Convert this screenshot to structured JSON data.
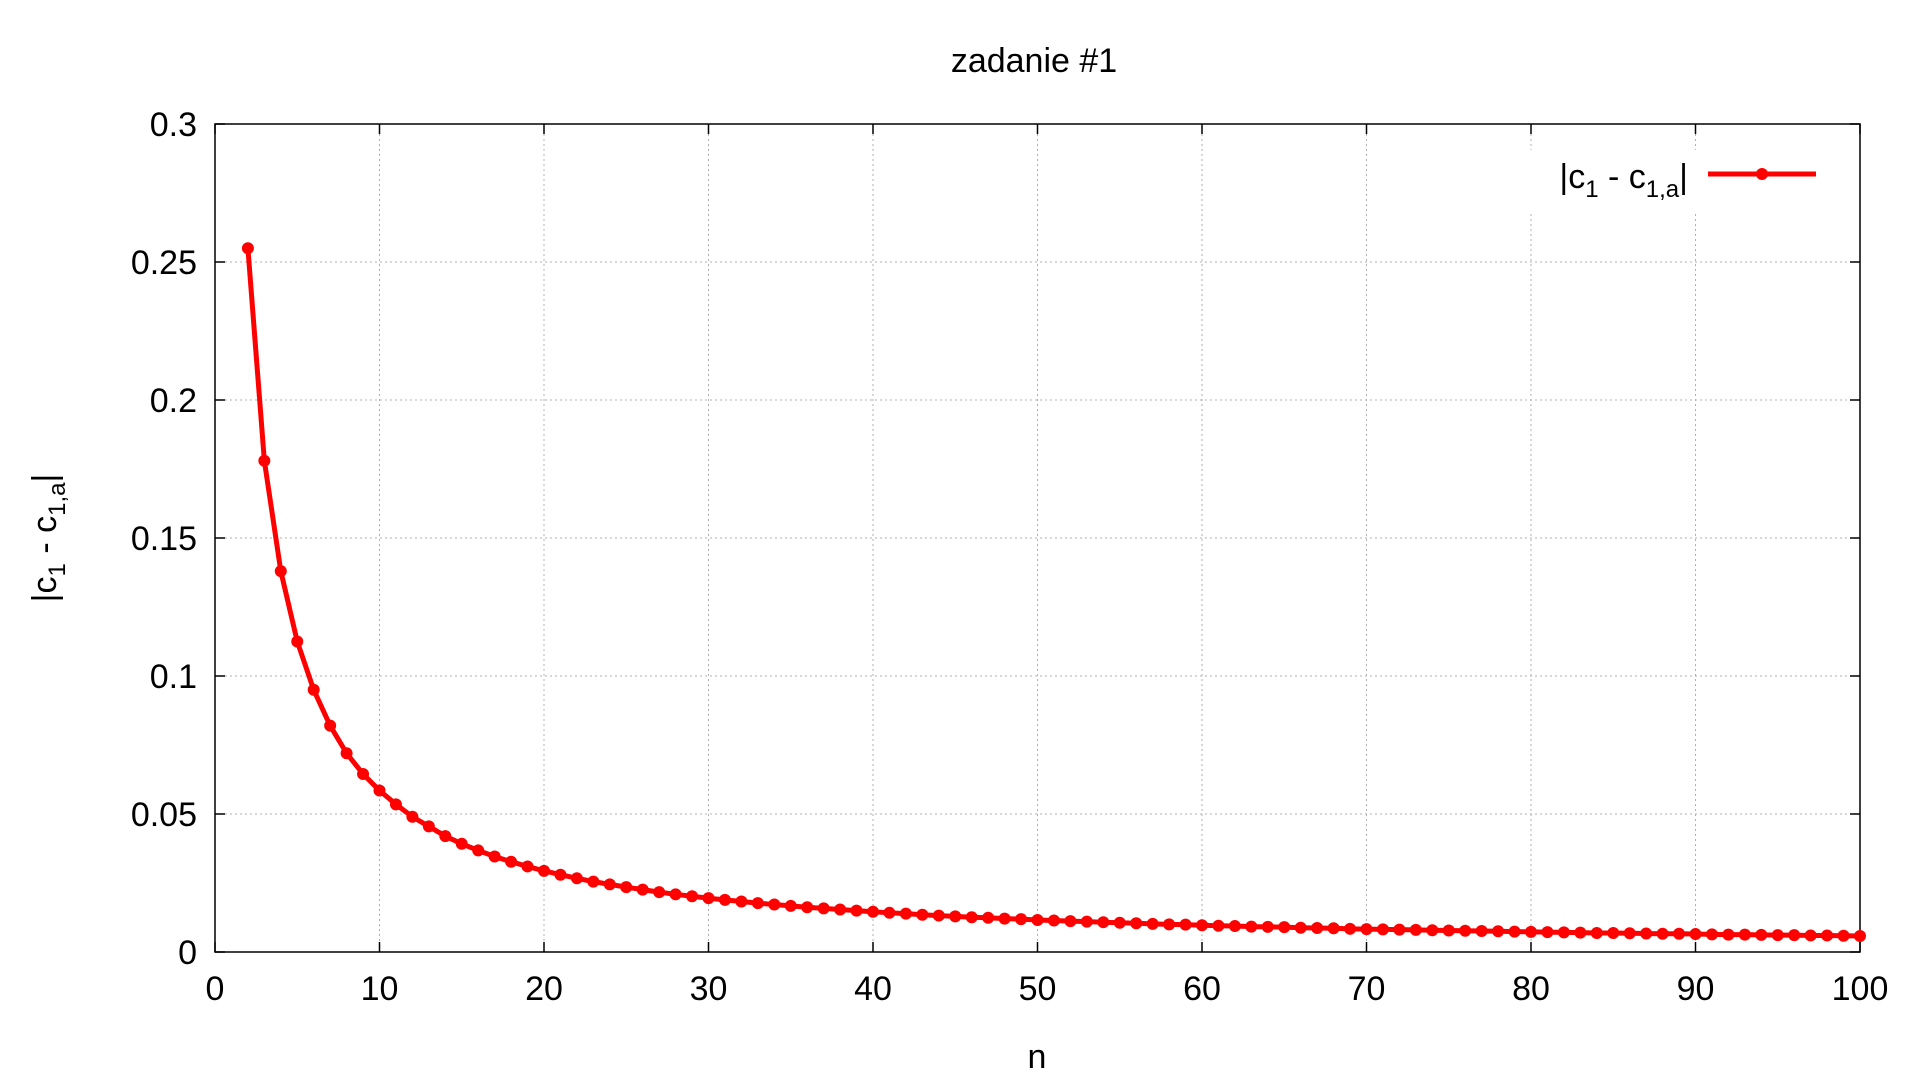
{
  "chart_data": {
    "type": "line",
    "title": "zadanie #1",
    "xlabel": "n",
    "ylabel": {
      "prefix": "|c",
      "sub1": "1",
      "middle": " - c",
      "sub2": "1,a",
      "suffix": "|"
    },
    "xlim": [
      0,
      100
    ],
    "ylim": [
      0,
      0.3
    ],
    "xticks": [
      "0",
      "10",
      "20",
      "30",
      "40",
      "50",
      "60",
      "70",
      "80",
      "90",
      "100"
    ],
    "yticks": [
      "0",
      "0.05",
      "0.1",
      "0.15",
      "0.2",
      "0.25",
      "0.3"
    ],
    "grid": true,
    "legend_position": "top-right",
    "series": [
      {
        "name": {
          "prefix": "|c",
          "sub1": "1",
          "middle": " - c",
          "sub2": "1,a",
          "suffix": "|"
        },
        "color": "#ff0000",
        "marker": "circle",
        "x": [
          2,
          3,
          4,
          5,
          6,
          7,
          8,
          9,
          10,
          11,
          12,
          13,
          14,
          15,
          16,
          17,
          18,
          19,
          20,
          21,
          22,
          23,
          24,
          25,
          26,
          27,
          28,
          29,
          30,
          31,
          32,
          33,
          34,
          35,
          36,
          37,
          38,
          39,
          40,
          41,
          42,
          43,
          44,
          45,
          46,
          47,
          48,
          49,
          50,
          51,
          52,
          53,
          54,
          55,
          56,
          57,
          58,
          59,
          60,
          61,
          62,
          63,
          64,
          65,
          66,
          67,
          68,
          69,
          70,
          71,
          72,
          73,
          74,
          75,
          76,
          77,
          78,
          79,
          80,
          81,
          82,
          83,
          84,
          85,
          86,
          87,
          88,
          89,
          90,
          91,
          92,
          93,
          94,
          95,
          96,
          97,
          98,
          99,
          100
        ],
        "y": [
          0.255,
          0.178,
          0.138,
          0.1125,
          0.095,
          0.082,
          0.072,
          0.0645,
          0.0585,
          0.0535,
          0.049,
          0.0455,
          0.042,
          0.0392,
          0.0368,
          0.0346,
          0.0327,
          0.031,
          0.0294,
          0.028,
          0.0267,
          0.0255,
          0.0245,
          0.0235,
          0.0226,
          0.0217,
          0.0209,
          0.0202,
          0.0195,
          0.0189,
          0.0183,
          0.0177,
          0.0172,
          0.0167,
          0.0162,
          0.0158,
          0.0154,
          0.015,
          0.0146,
          0.0142,
          0.0139,
          0.0135,
          0.0132,
          0.0129,
          0.0126,
          0.0124,
          0.0121,
          0.0119,
          0.0116,
          0.0114,
          0.0112,
          0.011,
          0.0108,
          0.0106,
          0.0104,
          0.0102,
          0.01,
          0.0099,
          0.0097,
          0.0095,
          0.0094,
          0.0092,
          0.0091,
          0.009,
          0.0088,
          0.0087,
          0.0086,
          0.0084,
          0.0083,
          0.0082,
          0.0081,
          0.008,
          0.0079,
          0.0078,
          0.0077,
          0.0076,
          0.0075,
          0.0074,
          0.0073,
          0.0072,
          0.0071,
          0.007,
          0.0069,
          0.0069,
          0.0068,
          0.0067,
          0.0066,
          0.0066,
          0.0065,
          0.0064,
          0.0063,
          0.0063,
          0.0062,
          0.0061,
          0.0061,
          0.006,
          0.006,
          0.0059,
          0.0058
        ]
      }
    ]
  }
}
